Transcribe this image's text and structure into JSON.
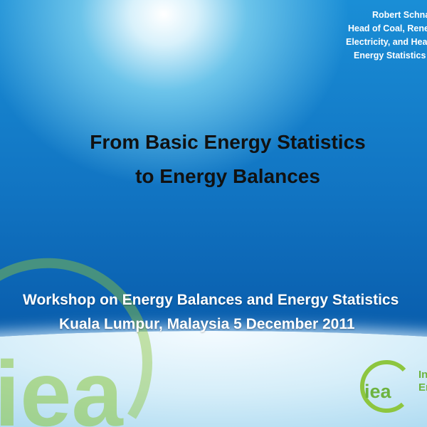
{
  "author": {
    "lines": [
      "Robert Schnapp",
      "Head of Coal, Renewables,",
      "Electricity, and Heat",
      "Energy Statistics Division"
    ]
  },
  "title": {
    "line1": "From Basic Energy Statistics",
    "line2": "to Energy Balances"
  },
  "subtitle": {
    "line1": "Workshop on Energy Balances and Energy Statistics",
    "line2": "Kuala Lumpur, Malaysia 5 December 2011"
  },
  "logo": {
    "text": "iea",
    "side_lines": [
      "International",
      "Energy Agency"
    ],
    "color": "#8dc63f"
  },
  "watermark": {
    "text": "iea"
  }
}
